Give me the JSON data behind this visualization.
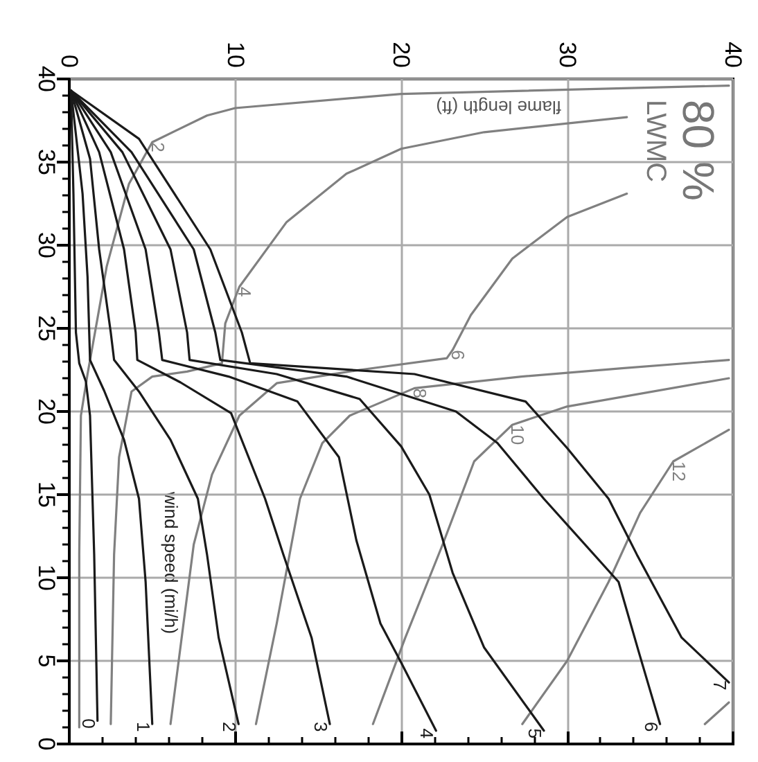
{
  "chart_data": {
    "type": "line",
    "title": "80 %",
    "subtitle": "LWMC",
    "annotations": [
      "flame length (ft)",
      "wind speed (mi/h)"
    ],
    "xlim": [
      0,
      40
    ],
    "ylim": [
      0,
      40
    ],
    "xticks": [
      0,
      {
        "value": 2,
        "label": null
      },
      {
        "value": 4,
        "label": null
      },
      {
        "value": 6,
        "label": null
      },
      {
        "value": 8,
        "label": null
      },
      10,
      {
        "value": 12,
        "label": null
      },
      {
        "value": 14,
        "label": null
      },
      {
        "value": 16,
        "label": null
      },
      {
        "value": 18,
        "label": null
      },
      20,
      {
        "value": 22,
        "label": null
      },
      {
        "value": 24,
        "label": null
      },
      {
        "value": 26,
        "label": null
      },
      {
        "value": 28,
        "label": null
      },
      30,
      {
        "value": 32,
        "label": null
      },
      {
        "value": 34,
        "label": null
      },
      {
        "value": 36,
        "label": null
      },
      {
        "value": 38,
        "label": null
      },
      40
    ],
    "yticks": [
      0,
      {
        "value": 1,
        "label": null
      },
      {
        "value": 2,
        "label": null
      },
      {
        "value": 3,
        "label": null
      },
      {
        "value": 4,
        "label": null
      },
      5,
      {
        "value": 6,
        "label": null
      },
      {
        "value": 7,
        "label": null
      },
      {
        "value": 8,
        "label": null
      },
      {
        "value": 9,
        "label": null
      },
      10,
      {
        "value": 11,
        "label": null
      },
      {
        "value": 12,
        "label": null
      },
      {
        "value": 13,
        "label": null
      },
      {
        "value": 14,
        "label": null
      },
      15,
      {
        "value": 16,
        "label": null
      },
      {
        "value": 17,
        "label": null
      },
      {
        "value": 18,
        "label": null
      },
      {
        "value": 19,
        "label": null
      },
      20,
      {
        "value": 21,
        "label": null
      },
      {
        "value": 22,
        "label": null
      },
      {
        "value": 23,
        "label": null
      },
      {
        "value": 24,
        "label": null
      },
      25,
      {
        "value": 26,
        "label": null
      },
      {
        "value": 27,
        "label": null
      },
      {
        "value": 28,
        "label": null
      },
      {
        "value": 29,
        "label": null
      },
      30,
      {
        "value": 31,
        "label": null
      },
      {
        "value": 32,
        "label": null
      },
      {
        "value": 33,
        "label": null
      },
      {
        "value": 34,
        "label": null
      },
      35,
      {
        "value": 36,
        "label": null
      },
      {
        "value": 37,
        "label": null
      },
      {
        "value": 38,
        "label": null
      },
      {
        "value": 39,
        "label": null
      },
      40
    ],
    "grid": true,
    "series": [
      {
        "name": "0",
        "color": "#1a1a1a",
        "x": [
          0.1,
          0.25,
          0.4,
          0.6,
          1.0,
          1.25,
          1.5,
          1.7
        ],
        "values": [
          39.3,
          33.1,
          24.75,
          22.9,
          21.8,
          19.75,
          11.4,
          1.4
        ]
      },
      {
        "name": "1",
        "color": "#1a1a1a",
        "x": [
          0.1,
          0.8,
          1.1,
          1.25,
          2.1,
          3.3,
          4.2,
          4.6,
          5.0
        ],
        "values": [
          39.3,
          33.1,
          28.1,
          23.1,
          21.25,
          18.3,
          14.75,
          9.75,
          1.2
        ]
      },
      {
        "name": "2",
        "color": "#1a1a1a",
        "x": [
          0.1,
          1.25,
          1.8,
          2.5,
          2.7,
          4.2,
          6.1,
          7.75,
          8.3,
          9.0,
          10.2
        ],
        "values": [
          39.3,
          35.2,
          29.75,
          24.75,
          23.1,
          21.2,
          18.3,
          14.75,
          11.4,
          6.4,
          1.2
        ]
      },
      {
        "name": "3",
        "color": "#1a1a1a",
        "x": [
          0.1,
          1.8,
          3.3,
          4.0,
          4.1,
          6.7,
          9.75,
          11.8,
          12.9,
          14.6,
          15.7
        ],
        "values": [
          39.3,
          35.6,
          29.75,
          24.75,
          23.1,
          21.75,
          19.9,
          14.75,
          11.4,
          6.4,
          1.2
        ]
      },
      {
        "name": "4",
        "color": "#1a1a1a",
        "x": [
          0.1,
          2.5,
          4.6,
          5.4,
          5.6,
          9.6,
          13.75,
          16.25,
          17.3,
          18.75,
          20.0,
          22.1
        ],
        "values": [
          39.3,
          35.6,
          29.75,
          24.75,
          23.1,
          22.1,
          20.6,
          17.25,
          12.25,
          7.25,
          4.9,
          0.8
        ]
      },
      {
        "name": "5",
        "color": "#1a1a1a",
        "x": [
          0.1,
          3.2,
          6.1,
          7.1,
          7.25,
          12.5,
          17.5,
          20.0,
          21.7,
          23.1,
          25.0,
          28.6
        ],
        "values": [
          39.3,
          35.6,
          29.75,
          24.75,
          23.1,
          22.25,
          20.75,
          17.9,
          15.0,
          10.3,
          5.8,
          0.8
        ]
      },
      {
        "name": "6",
        "color": "#1a1a1a",
        "x": [
          0.1,
          3.75,
          7.5,
          8.8,
          9.1,
          16.7,
          23.3,
          25.8,
          28.6,
          33.1,
          34.3,
          35.6
        ],
        "values": [
          39.3,
          35.6,
          29.75,
          24.75,
          23.1,
          22.1,
          20.0,
          18.1,
          14.75,
          9.75,
          5.6,
          1.2
        ]
      },
      {
        "name": "7",
        "color": "#1a1a1a",
        "x": [
          0.1,
          4.2,
          8.5,
          10.4,
          10.9,
          20.8,
          27.5,
          30.0,
          32.5,
          34.2,
          36.9,
          39.75
        ],
        "values": [
          39.3,
          36.4,
          29.75,
          24.75,
          22.9,
          22.25,
          20.6,
          17.8,
          14.75,
          11.4,
          6.4,
          3.7
        ]
      },
      {
        "name": "2",
        "color": "#808080",
        "x": [
          0.6,
          0.6,
          0.7,
          1.1,
          1.7,
          2.25,
          3.6,
          5.0,
          8.3,
          10.0,
          20.0,
          39.75
        ],
        "values": [
          1.0,
          11.4,
          19.75,
          22.25,
          25.6,
          28.7,
          33.7,
          36.2,
          37.8,
          38.25,
          39.1,
          39.6
        ]
      },
      {
        "name": "4",
        "color": "#808080",
        "x": [
          2.5,
          2.7,
          3.0,
          3.75,
          5.0,
          7.1,
          9.2,
          9.4,
          10.25,
          13.1,
          16.7,
          20.0,
          25.0,
          33.6
        ],
        "values": [
          1.2,
          11.4,
          17.25,
          21.2,
          22.1,
          22.4,
          22.9,
          25.3,
          27.5,
          31.4,
          34.3,
          35.8,
          36.8,
          37.7
        ]
      },
      {
        "name": "6",
        "color": "#808080",
        "x": [
          6.1,
          7.5,
          8.6,
          10.25,
          12.5,
          17.5,
          22.75,
          23.1,
          24.2,
          26.7,
          30.0,
          33.6
        ],
        "values": [
          1.2,
          12.0,
          16.2,
          19.75,
          21.7,
          22.5,
          23.2,
          23.7,
          25.8,
          29.2,
          31.7,
          33.1
        ]
      },
      {
        "name": "8",
        "color": "#808080",
        "x": [
          11.25,
          12.5,
          13.9,
          15.25,
          16.9,
          20.8,
          27.25,
          33.3,
          39.75
        ],
        "values": [
          1.2,
          7.25,
          14.75,
          18.1,
          19.75,
          21.4,
          22.1,
          22.6,
          23.1
        ]
      },
      {
        "name": "10",
        "color": "#808080",
        "x": [
          18.3,
          20.25,
          22.5,
          24.4,
          26.7,
          30.0,
          39.75
        ],
        "values": [
          1.2,
          6.4,
          12.0,
          17.0,
          19.2,
          20.3,
          22.0
        ]
      },
      {
        "name": "12",
        "color": "#808080",
        "x": [
          27.3,
          30.0,
          32.5,
          34.4,
          36.4,
          39.75
        ],
        "values": [
          1.2,
          5.0,
          9.75,
          13.9,
          17.0,
          18.9
        ]
      },
      {
        "color": "#808080",
        "x": [
          38.3,
          39.75
        ],
        "values": [
          1.2,
          2.5
        ]
      }
    ]
  }
}
